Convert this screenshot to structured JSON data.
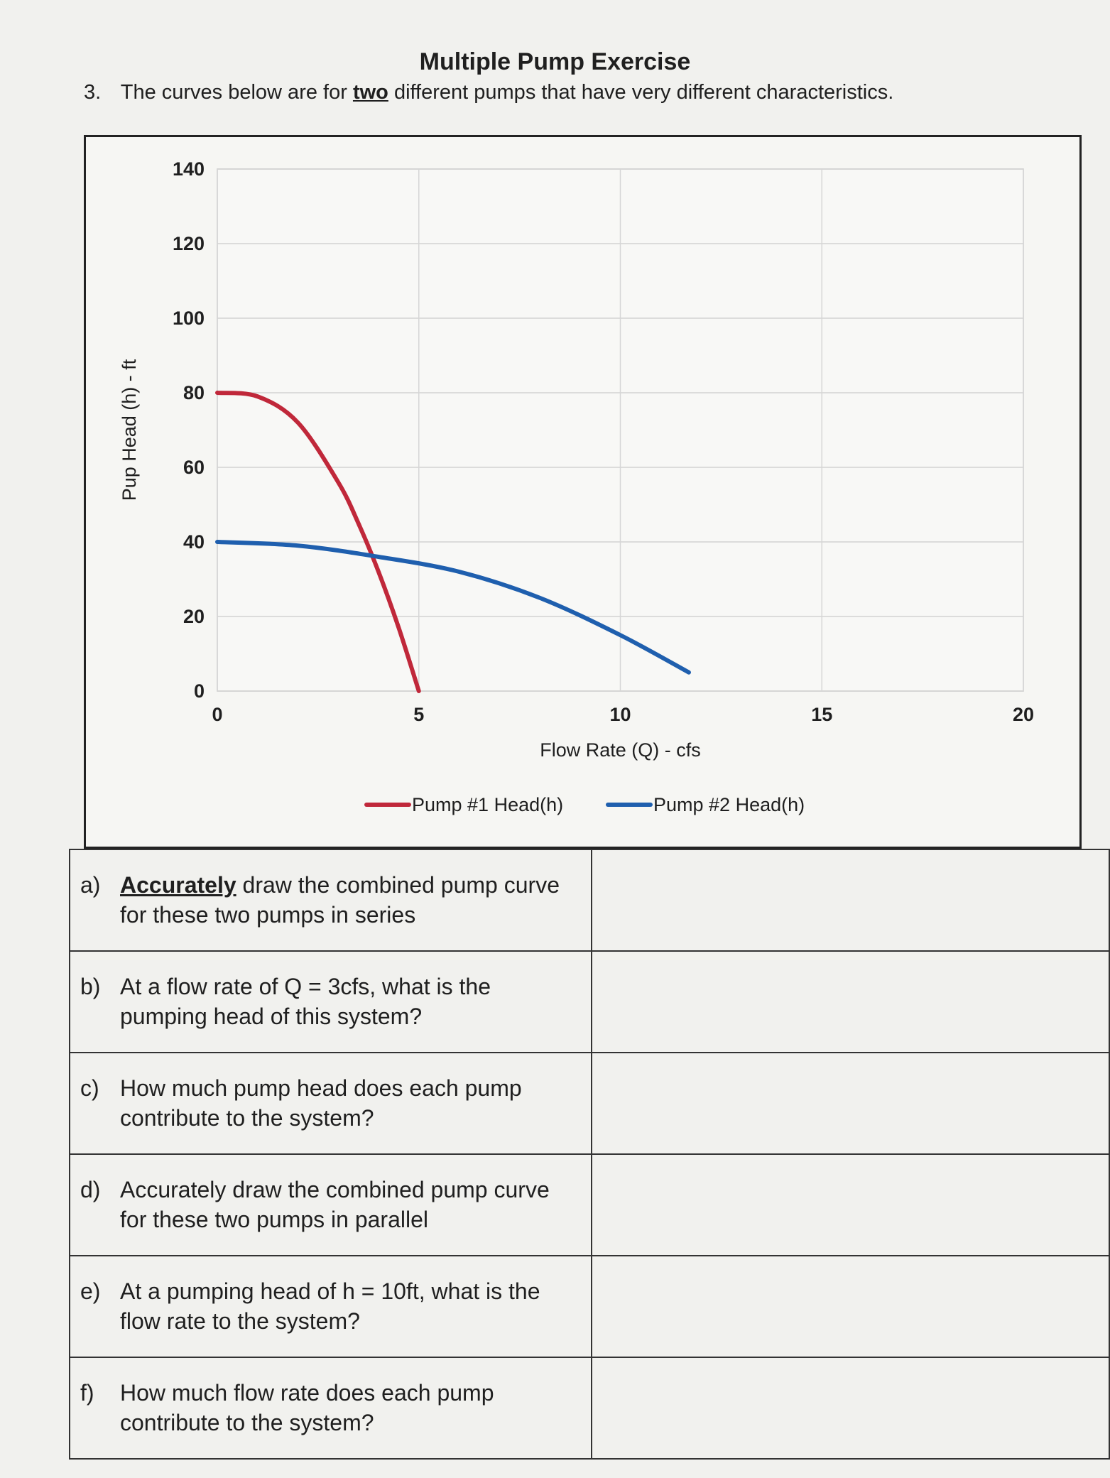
{
  "title": "Multiple Pump Exercise",
  "intro": {
    "number": "3.",
    "text_before": "The curves below are for",
    "emphasis": "two",
    "text_after": "different pumps that have very different characteristics."
  },
  "chart_data": {
    "type": "line",
    "xlabel": "Flow Rate (Q) - cfs",
    "ylabel": "Pup Head (h) - ft",
    "xlim": [
      0,
      20
    ],
    "ylim": [
      0,
      140
    ],
    "xticks": [
      "0",
      "5",
      "10",
      "15",
      "20"
    ],
    "yticks": [
      "0",
      "20",
      "40",
      "60",
      "80",
      "100",
      "120",
      "140"
    ],
    "grid": true,
    "legend_position": "bottom",
    "series": [
      {
        "name": "Pump #1 Head(h)",
        "color": "#c0283a",
        "x": [
          0,
          1,
          2,
          3,
          3.5,
          4,
          4.5,
          5
        ],
        "y": [
          80,
          79,
          72,
          56,
          45,
          32,
          17,
          0
        ]
      },
      {
        "name": "Pump #2 Head(h)",
        "color": "#1f5fae",
        "x": [
          0,
          2,
          4,
          6,
          8,
          10,
          11.7
        ],
        "y": [
          40,
          39,
          36,
          32,
          25,
          15,
          5
        ]
      }
    ]
  },
  "questions": [
    {
      "letter": "a)",
      "emphasis": "Accurately",
      "text": " draw the combined pump curve for these two pumps in series"
    },
    {
      "letter": "b)",
      "emphasis": "",
      "text": "At a flow rate of Q = 3cfs, what is the pumping head of this system?"
    },
    {
      "letter": "c)",
      "emphasis": "",
      "text": "How much pump head does each pump contribute to the system?"
    },
    {
      "letter": "d)",
      "emphasis": "",
      "text": "Accurately draw the combined pump curve for these two pumps in parallel"
    },
    {
      "letter": "e)",
      "emphasis": "",
      "text": "At a pumping head of h = 10ft, what is the flow rate to the system?"
    },
    {
      "letter": "f)",
      "emphasis": "",
      "text": "How much flow rate does each pump contribute to the system?"
    }
  ]
}
